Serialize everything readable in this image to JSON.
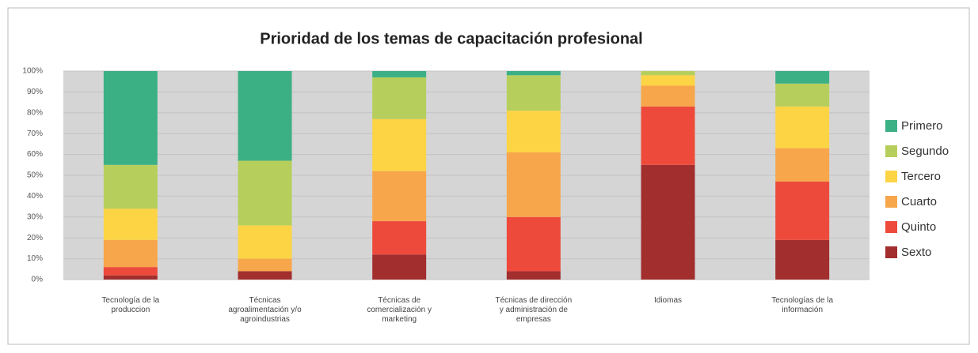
{
  "chart_data": {
    "type": "stacked_bar",
    "title": "Prioridad de los temas de capacitación profesional",
    "categories": [
      "Tecnología de la produccion",
      "Técnicas agroalimentación y/o agroindustrias",
      "Técnicas de comercialización y marketing",
      "Técnicas de dirección y administración de empresas",
      "Idiomas",
      "Tecnologías de la información"
    ],
    "series": [
      {
        "name": "Sexto",
        "color": "#a22e2e",
        "values": [
          2,
          4,
          12,
          4,
          55,
          19
        ]
      },
      {
        "name": "Quinto",
        "color": "#ee4a3b",
        "values": [
          4,
          0,
          16,
          26,
          28,
          28
        ]
      },
      {
        "name": "Cuarto",
        "color": "#f7a64b",
        "values": [
          13,
          6,
          24,
          31,
          10,
          16
        ]
      },
      {
        "name": "Tercero",
        "color": "#fcd444",
        "values": [
          15,
          16,
          25,
          20,
          5,
          20
        ]
      },
      {
        "name": "Segundo",
        "color": "#b6cf5c",
        "values": [
          21,
          31,
          20,
          17,
          2,
          11
        ]
      },
      {
        "name": "Primero",
        "color": "#3cb085",
        "values": [
          45,
          43,
          3,
          2,
          0,
          6
        ]
      }
    ],
    "ylim": [
      0,
      100
    ],
    "yticks": [
      {
        "value": 0,
        "label": "0%"
      },
      {
        "value": 10,
        "label": "10%"
      },
      {
        "value": 20,
        "label": "20%"
      },
      {
        "value": 30,
        "label": "30%"
      },
      {
        "value": 40,
        "label": "40%"
      },
      {
        "value": 50,
        "label": "50%"
      },
      {
        "value": 60,
        "label": "60%"
      },
      {
        "value": 70,
        "label": "70%"
      },
      {
        "value": 80,
        "label": "80%"
      },
      {
        "value": 90,
        "label": "90%"
      },
      {
        "value": 100,
        "label": "100%"
      }
    ],
    "grid": true,
    "legend": "right"
  }
}
